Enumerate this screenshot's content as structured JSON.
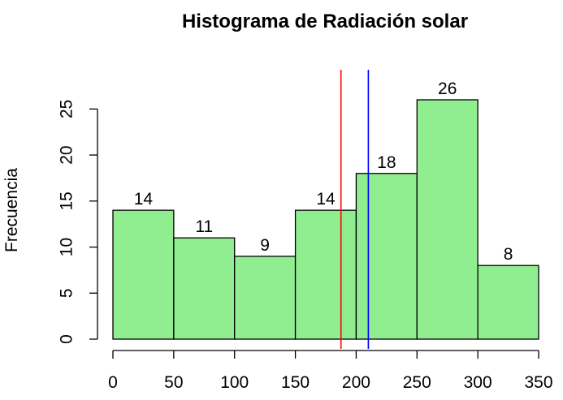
{
  "chart_data": {
    "type": "histogram",
    "title": "Histograma de Radiación solar",
    "xlabel": "",
    "ylabel": "Frecuencia",
    "bins": [
      {
        "start": 0,
        "end": 50,
        "count": 14
      },
      {
        "start": 50,
        "end": 100,
        "count": 11
      },
      {
        "start": 100,
        "end": 150,
        "count": 9
      },
      {
        "start": 150,
        "end": 200,
        "count": 14
      },
      {
        "start": 200,
        "end": 250,
        "count": 18
      },
      {
        "start": 250,
        "end": 300,
        "count": 26
      },
      {
        "start": 300,
        "end": 350,
        "count": 8
      }
    ],
    "xlim": [
      0,
      350
    ],
    "ylim": [
      0,
      25
    ],
    "x_ticks": [
      0,
      50,
      100,
      150,
      200,
      250,
      300,
      350
    ],
    "y_ticks": [
      0,
      5,
      10,
      15,
      20,
      25
    ],
    "bar_color": "#90EE90",
    "bar_border_color": "#000000",
    "vertical_lines": [
      {
        "x": 187.5,
        "color": "#FF0000"
      },
      {
        "x": 210,
        "color": "#0000FF"
      }
    ],
    "grid": false
  }
}
